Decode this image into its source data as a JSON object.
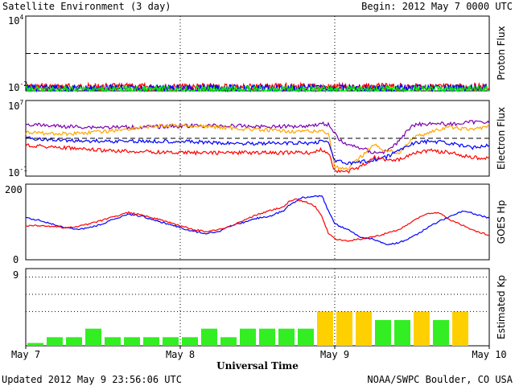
{
  "header": {
    "title": "Satellite Environment (3 day)",
    "begin": "Begin:  2012 May 7 0000 UTC"
  },
  "footer": {
    "updated": "Updated 2012 May  9 23:56:06 UTC",
    "credit": "NOAA/SWPC Boulder, CO USA"
  },
  "x_axis": {
    "title": "Universal Time",
    "ticks": [
      "May 7",
      "May 8",
      "May 9",
      "May 10"
    ],
    "range_hours": [
      0,
      72
    ]
  },
  "colors": {
    "red": "#ff0000",
    "blue": "#0000ff",
    "green": "#00ee00",
    "purple": "#7a00b0",
    "orange": "#ffa500",
    "kp_green": "#33ee22",
    "kp_yellow": "#ffd000"
  },
  "chart_data": [
    {
      "type": "line",
      "ylabel": "Proton Flux",
      "scale": "log",
      "ylim": [
        0.01,
        10000
      ],
      "ytick_labels": [
        {
          "base": "10",
          "exp": "4"
        },
        {
          "base": "10",
          "exp": "-2"
        }
      ],
      "threshold_dashed": 10,
      "x": [
        0,
        72
      ],
      "series": [
        {
          "color": "red",
          "values": [
            0.02,
            0.02
          ]
        },
        {
          "color": "blue",
          "values": [
            0.016,
            0.016
          ]
        },
        {
          "color": "green",
          "values": [
            0.0125,
            0.0125
          ]
        }
      ]
    },
    {
      "type": "line",
      "ylabel": "Electron Flux",
      "scale": "log",
      "ylim": [
        0.1,
        10000000
      ],
      "ytick_labels": [
        {
          "base": "10",
          "exp": "7"
        },
        {
          "base": "10",
          "exp": "-1"
        }
      ],
      "threshold_dashed": 1000,
      "x": [
        0,
        6,
        12,
        18,
        24,
        30,
        36,
        40,
        44,
        46,
        47,
        48,
        49,
        50,
        52,
        54,
        56,
        58,
        60,
        63,
        66,
        69,
        72
      ],
      "series": [
        {
          "color": "purple",
          "values": [
            30000,
            18000,
            15000,
            15000,
            20000,
            22000,
            18000,
            18000,
            22000,
            35000,
            30000,
            3000,
            500,
            200,
            100,
            30,
            40,
            500,
            25000,
            40000,
            30000,
            50000,
            60000
          ]
        },
        {
          "color": "orange",
          "values": [
            4000,
            3000,
            5000,
            15000,
            25000,
            15000,
            8000,
            6000,
            5000,
            6000,
            4000,
            1,
            0.6,
            0.5,
            10,
            200,
            50,
            30,
            1000,
            5000,
            15000,
            8000,
            20000
          ]
        },
        {
          "color": "blue",
          "values": [
            1000,
            600,
            500,
            500,
            500,
            300,
            300,
            300,
            300,
            500,
            400,
            5,
            3,
            2,
            3,
            5,
            10,
            50,
            300,
            500,
            300,
            100,
            200
          ]
        },
        {
          "color": "red",
          "values": [
            200,
            100,
            50,
            40,
            30,
            30,
            30,
            30,
            30,
            60,
            30,
            0.4,
            0.3,
            0.3,
            1,
            10,
            5,
            5,
            30,
            50,
            30,
            10,
            8
          ]
        }
      ]
    },
    {
      "type": "line",
      "ylabel": "GOES Hp",
      "scale": "linear",
      "ylim": [
        0,
        200
      ],
      "ytick_labels": [
        "200",
        "0"
      ],
      "x": [
        0,
        2,
        4,
        6,
        8,
        10,
        12,
        14,
        16,
        18,
        20,
        22,
        24,
        26,
        28,
        30,
        32,
        34,
        36,
        38,
        40,
        41,
        42,
        43,
        44,
        45,
        46,
        47,
        48,
        50,
        52,
        54,
        56,
        58,
        60,
        62,
        64,
        66,
        68,
        70,
        72
      ],
      "series": [
        {
          "color": "blue",
          "values": [
            110,
            105,
            95,
            85,
            80,
            85,
            95,
            110,
            120,
            115,
            105,
            95,
            85,
            75,
            70,
            75,
            90,
            100,
            110,
            115,
            130,
            145,
            155,
            165,
            165,
            168,
            170,
            130,
            95,
            80,
            60,
            55,
            40,
            45,
            60,
            80,
            100,
            115,
            130,
            120,
            110
          ]
        },
        {
          "color": "red",
          "values": [
            90,
            90,
            88,
            85,
            88,
            95,
            105,
            115,
            125,
            118,
            110,
            100,
            90,
            80,
            75,
            80,
            90,
            105,
            120,
            130,
            140,
            155,
            160,
            155,
            150,
            140,
            115,
            70,
            55,
            50,
            55,
            60,
            70,
            80,
            100,
            120,
            125,
            105,
            90,
            75,
            65
          ]
        }
      ]
    },
    {
      "type": "bar",
      "ylabel": "Estimated Kp",
      "ylim": [
        0,
        9
      ],
      "ytick_labels": [
        "9"
      ],
      "threshold_dotted": [
        4,
        6,
        8
      ],
      "bar_hours": 3,
      "values": [
        0.33,
        1,
        1,
        2,
        1,
        1,
        1,
        1,
        1,
        2,
        1,
        2,
        2,
        2,
        2,
        4,
        4,
        4,
        3,
        3,
        4,
        3,
        4,
        0
      ]
    }
  ]
}
